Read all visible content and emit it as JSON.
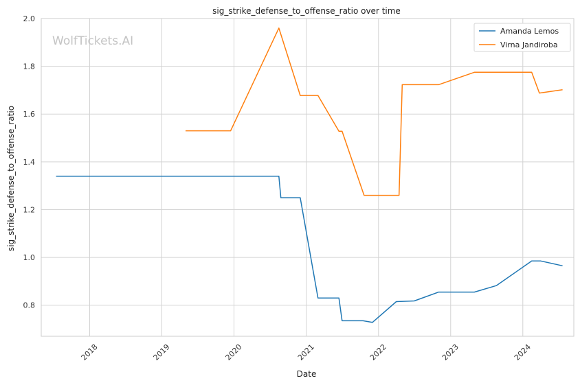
{
  "chart_data": {
    "type": "line",
    "title": "sig_strike_defense_to_offense_ratio over time",
    "xlabel": "Date",
    "ylabel": "sig_strike_defense_to_offense_ratio",
    "watermark": "WolfTickets.AI",
    "xlim": [
      "2017-05-01",
      "2024-09-15"
    ],
    "ylim": [
      0.67,
      2.0
    ],
    "x_ticks": [
      "2018-01-01",
      "2019-01-01",
      "2020-01-01",
      "2021-01-01",
      "2022-01-01",
      "2023-01-01",
      "2024-01-01"
    ],
    "x_tick_labels": [
      "2018",
      "2019",
      "2020",
      "2021",
      "2022",
      "2023",
      "2024"
    ],
    "y_ticks": [
      0.8,
      1.0,
      1.2,
      1.4,
      1.6,
      1.8,
      2.0
    ],
    "y_tick_labels": [
      "0.8",
      "1.0",
      "1.2",
      "1.4",
      "1.6",
      "1.8",
      "2.0"
    ],
    "grid": true,
    "legend_position": "top-right",
    "series": [
      {
        "name": "Amanda Lemos",
        "color": "#1f77b4",
        "points": [
          {
            "x": "2017-07-15",
            "y": 1.34
          },
          {
            "x": "2020-08-15",
            "y": 1.34
          },
          {
            "x": "2020-08-25",
            "y": 1.25
          },
          {
            "x": "2020-12-01",
            "y": 1.25
          },
          {
            "x": "2021-03-01",
            "y": 0.83
          },
          {
            "x": "2021-06-15",
            "y": 0.83
          },
          {
            "x": "2021-07-01",
            "y": 0.735
          },
          {
            "x": "2021-10-15",
            "y": 0.735
          },
          {
            "x": "2021-12-01",
            "y": 0.728
          },
          {
            "x": "2022-04-01",
            "y": 0.815
          },
          {
            "x": "2022-07-01",
            "y": 0.818
          },
          {
            "x": "2022-11-01",
            "y": 0.855
          },
          {
            "x": "2023-05-01",
            "y": 0.855
          },
          {
            "x": "2023-08-20",
            "y": 0.882
          },
          {
            "x": "2024-02-15",
            "y": 0.985
          },
          {
            "x": "2024-04-01",
            "y": 0.985
          },
          {
            "x": "2024-07-20",
            "y": 0.965
          }
        ]
      },
      {
        "name": "Virna Jandiroba",
        "color": "#ff7f0e",
        "points": [
          {
            "x": "2019-05-01",
            "y": 1.53
          },
          {
            "x": "2019-12-15",
            "y": 1.53
          },
          {
            "x": "2020-08-15",
            "y": 1.96
          },
          {
            "x": "2020-12-01",
            "y": 1.678
          },
          {
            "x": "2021-03-01",
            "y": 1.678
          },
          {
            "x": "2021-06-15",
            "y": 1.528
          },
          {
            "x": "2021-07-01",
            "y": 1.528
          },
          {
            "x": "2021-10-20",
            "y": 1.26
          },
          {
            "x": "2022-04-15",
            "y": 1.26
          },
          {
            "x": "2022-05-01",
            "y": 1.723
          },
          {
            "x": "2022-11-01",
            "y": 1.723
          },
          {
            "x": "2023-05-01",
            "y": 1.775
          },
          {
            "x": "2024-02-15",
            "y": 1.775
          },
          {
            "x": "2024-03-25",
            "y": 1.688
          },
          {
            "x": "2024-07-20",
            "y": 1.702
          }
        ]
      }
    ]
  }
}
